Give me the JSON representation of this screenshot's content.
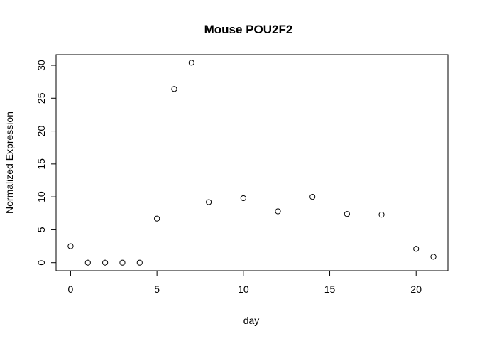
{
  "chart_data": {
    "type": "scatter",
    "title": "Mouse POU2F2",
    "xlabel": "day",
    "ylabel": "Normalized Expression",
    "xlim": [
      -0.84,
      21.84
    ],
    "ylim": [
      -1.22,
      31.62
    ],
    "xticks": [
      0,
      5,
      10,
      15,
      20
    ],
    "yticks": [
      0,
      5,
      10,
      15,
      20,
      25,
      30
    ],
    "grid": false,
    "marker": "open-circle",
    "series": [
      {
        "points": [
          {
            "x": 0,
            "y": 2.5
          },
          {
            "x": 1,
            "y": 0.0
          },
          {
            "x": 2,
            "y": 0.0
          },
          {
            "x": 3,
            "y": 0.0
          },
          {
            "x": 4,
            "y": 0.0
          },
          {
            "x": 5,
            "y": 6.7
          },
          {
            "x": 6,
            "y": 26.4
          },
          {
            "x": 7,
            "y": 30.4
          },
          {
            "x": 8,
            "y": 9.2
          },
          {
            "x": 10,
            "y": 9.8
          },
          {
            "x": 12,
            "y": 7.8
          },
          {
            "x": 14,
            "y": 10.0
          },
          {
            "x": 16,
            "y": 7.4
          },
          {
            "x": 18,
            "y": 7.3
          },
          {
            "x": 20,
            "y": 2.1
          },
          {
            "x": 21,
            "y": 0.9
          }
        ]
      }
    ],
    "colors": {
      "marker_stroke": "#000000",
      "axis": "#000000",
      "background": "#ffffff"
    }
  }
}
